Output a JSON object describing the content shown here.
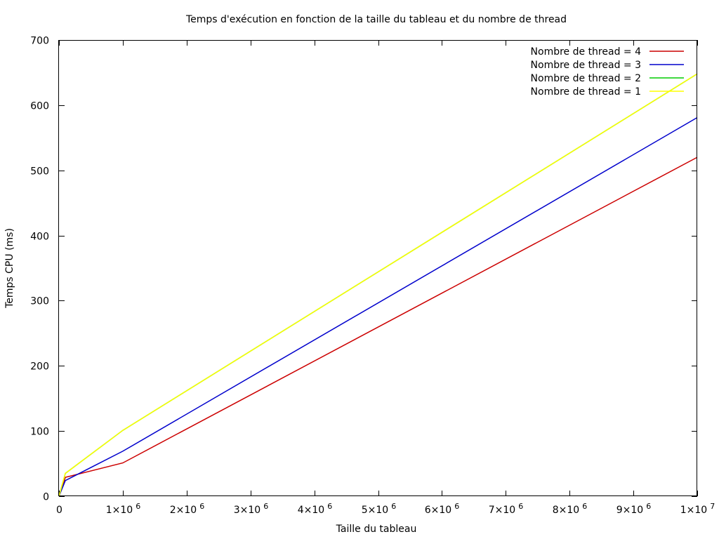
{
  "chart_data": {
    "type": "line",
    "title": "Temps d'exécution en fonction de la taille du tableau et du nombre de thread",
    "xlabel": "Taille du tableau",
    "ylabel": "Temps CPU (ms)",
    "xlim": [
      0,
      10000000
    ],
    "ylim": [
      0,
      700
    ],
    "grid": false,
    "legend_position": "top-right",
    "x_ticks": [
      {
        "value": 0,
        "base": "0",
        "exp": ""
      },
      {
        "value": 1000000,
        "base": "1×10",
        "exp": "6"
      },
      {
        "value": 2000000,
        "base": "2×10",
        "exp": "6"
      },
      {
        "value": 3000000,
        "base": "3×10",
        "exp": "6"
      },
      {
        "value": 4000000,
        "base": "4×10",
        "exp": "6"
      },
      {
        "value": 5000000,
        "base": "5×10",
        "exp": "6"
      },
      {
        "value": 6000000,
        "base": "6×10",
        "exp": "6"
      },
      {
        "value": 7000000,
        "base": "7×10",
        "exp": "6"
      },
      {
        "value": 8000000,
        "base": "8×10",
        "exp": "6"
      },
      {
        "value": 9000000,
        "base": "9×10",
        "exp": "6"
      },
      {
        "value": 10000000,
        "base": "1×10",
        "exp": "7"
      }
    ],
    "y_ticks": [
      0,
      100,
      200,
      300,
      400,
      500,
      600,
      700
    ],
    "series": [
      {
        "name": "Nombre de thread = 4",
        "color": "#cc0000",
        "x": [
          0,
          100000,
          1000000,
          10000000
        ],
        "y": [
          0,
          29,
          51,
          520
        ]
      },
      {
        "name": "Nombre de thread = 3",
        "color": "#0000cc",
        "x": [
          0,
          100000,
          1000000,
          10000000
        ],
        "y": [
          0,
          24,
          69,
          581
        ]
      },
      {
        "name": "Nombre de thread = 2",
        "color": "#00cc00",
        "x": [
          0,
          100000,
          1000000,
          10000000
        ],
        "y": [
          0,
          35,
          101,
          648
        ]
      },
      {
        "name": "Nombre de thread = 1",
        "color": "#ffff00",
        "x": [
          0,
          100000,
          1000000,
          10000000
        ],
        "y": [
          0,
          35,
          101,
          648
        ]
      }
    ]
  }
}
